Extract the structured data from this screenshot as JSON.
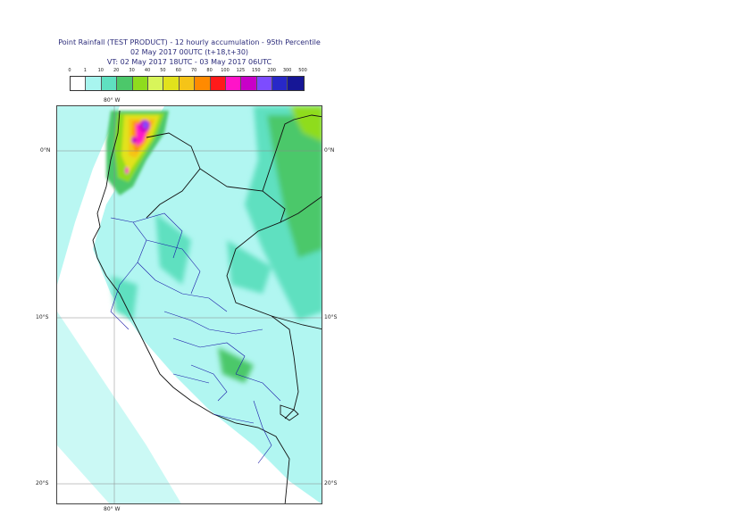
{
  "header": {
    "title_line1": "Point Rainfall (TEST PRODUCT) - 12 hourly accumulation - 95th Percentile",
    "title_line2": "02 May 2017 00UTC (t+18,t+30)",
    "title_line3": "VT: 02 May 2017 18UTC - 03 May 2017 06UTC"
  },
  "legend": {
    "ticks": [
      "0",
      "1",
      "10",
      "20",
      "30",
      "40",
      "50",
      "60",
      "70",
      "80",
      "100",
      "125",
      "150",
      "200",
      "300",
      "500"
    ],
    "colors": [
      "#ffffff",
      "#a8f5ef",
      "#5fe0c0",
      "#4cc86a",
      "#8fdc1e",
      "#d8f55a",
      "#e2e21c",
      "#f5c418",
      "#ff8a00",
      "#ff1a1a",
      "#ff14c8",
      "#c800c8",
      "#7d4cff",
      "#2828c8",
      "#161696"
    ]
  },
  "map": {
    "lon_label_top": "80° W",
    "lon_label_bottom": "80° W",
    "lat_labels": [
      "0°N",
      "10°S",
      "20°S"
    ]
  }
}
